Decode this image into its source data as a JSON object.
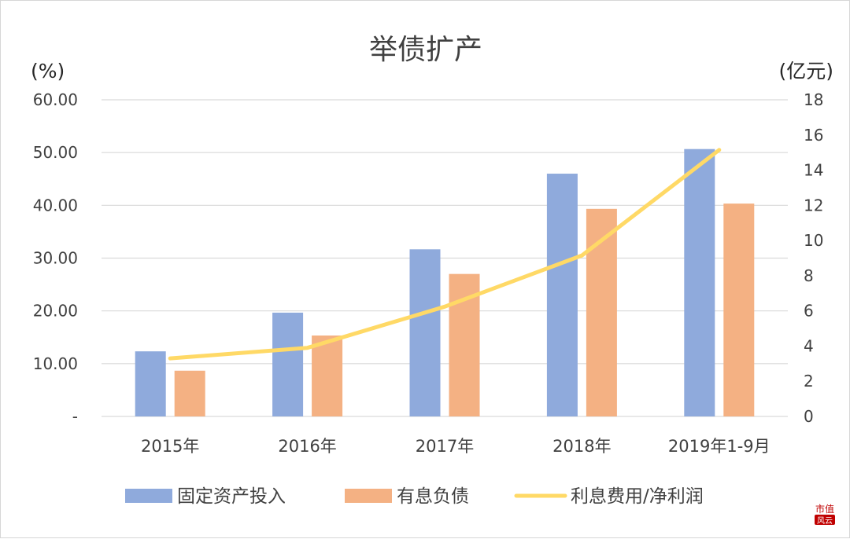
{
  "chart_data": {
    "type": "bar",
    "title": "举债扩产",
    "left_axis_label": "(%)",
    "right_axis_label": "(亿元)",
    "categories": [
      "2015年",
      "2016年",
      "2017年",
      "2018年",
      "2019年1-9月"
    ],
    "left_ylim": [
      0,
      60
    ],
    "left_ticks": [
      "-",
      "10.00",
      "20.00",
      "30.00",
      "40.00",
      "50.00",
      "60.00"
    ],
    "right_ylim": [
      0,
      18
    ],
    "right_ticks": [
      "0",
      "2",
      "4",
      "6",
      "8",
      "10",
      "12",
      "14",
      "16",
      "18"
    ],
    "grid": true,
    "legend_position": "bottom",
    "series": [
      {
        "name": "固定资产投入",
        "kind": "bar",
        "axis": "right",
        "color": "#8FAADC",
        "values": [
          3.7,
          5.9,
          9.5,
          13.8,
          15.2
        ]
      },
      {
        "name": "有息负债",
        "kind": "bar",
        "axis": "right",
        "color": "#F4B183",
        "values": [
          2.6,
          4.6,
          8.1,
          11.8,
          12.1
        ]
      },
      {
        "name": "利息费用/净利润",
        "kind": "line",
        "axis": "left",
        "color": "#FFD966",
        "values": [
          11.0,
          13.0,
          20.8,
          30.5,
          50.5
        ]
      }
    ]
  },
  "watermark": {
    "text": "市值风云",
    "color": "#C00000"
  }
}
